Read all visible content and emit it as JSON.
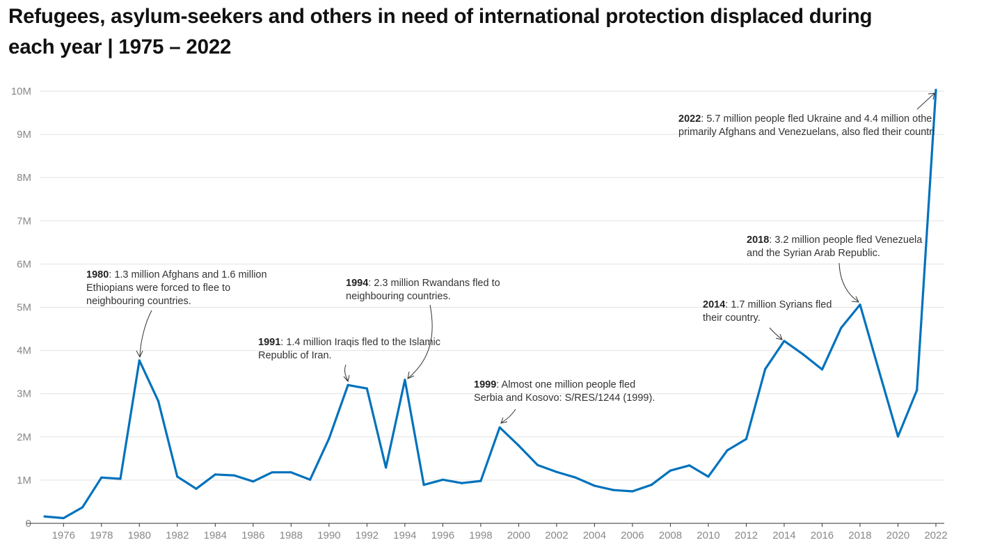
{
  "title": "Refugees, asylum-seekers and others in need of international protection displaced during each year | 1975 – 2022",
  "chart_data": {
    "type": "line",
    "title": "Refugees, asylum-seekers and others in need of international protection displaced during each year | 1975 – 2022",
    "xlabel": "",
    "ylabel": "",
    "color": "#0072bc",
    "grid": true,
    "ylim": [
      0,
      10000000
    ],
    "xlim": [
      1975,
      2022
    ],
    "y_ticks": [
      {
        "v": 0,
        "label": "0"
      },
      {
        "v": 1000000,
        "label": "1M"
      },
      {
        "v": 2000000,
        "label": "2M"
      },
      {
        "v": 3000000,
        "label": "3M"
      },
      {
        "v": 4000000,
        "label": "4M"
      },
      {
        "v": 5000000,
        "label": "5M"
      },
      {
        "v": 6000000,
        "label": "6M"
      },
      {
        "v": 7000000,
        "label": "7M"
      },
      {
        "v": 8000000,
        "label": "8M"
      },
      {
        "v": 9000000,
        "label": "9M"
      },
      {
        "v": 10000000,
        "label": "10M"
      }
    ],
    "x_ticks": [
      "1976",
      "1978",
      "1980",
      "1982",
      "1984",
      "1986",
      "1988",
      "1990",
      "1992",
      "1994",
      "1996",
      "1998",
      "2000",
      "2002",
      "2004",
      "2006",
      "2008",
      "2010",
      "2012",
      "2014",
      "2016",
      "2018",
      "2020",
      "2022"
    ],
    "x": [
      1975,
      1976,
      1977,
      1978,
      1979,
      1980,
      1981,
      1982,
      1983,
      1984,
      1985,
      1986,
      1987,
      1988,
      1989,
      1990,
      1991,
      1992,
      1993,
      1994,
      1995,
      1996,
      1997,
      1998,
      1999,
      2000,
      2001,
      2002,
      2003,
      2004,
      2005,
      2006,
      2007,
      2008,
      2009,
      2010,
      2011,
      2012,
      2013,
      2014,
      2015,
      2016,
      2017,
      2018,
      2019,
      2020,
      2021,
      2022
    ],
    "values": [
      160000,
      120000,
      370000,
      1060000,
      1030000,
      3770000,
      2830000,
      1080000,
      800000,
      1130000,
      1110000,
      970000,
      1180000,
      1180000,
      1010000,
      1960000,
      3200000,
      3120000,
      1290000,
      3320000,
      890000,
      1010000,
      930000,
      980000,
      2220000,
      1800000,
      1350000,
      1190000,
      1060000,
      870000,
      770000,
      740000,
      890000,
      1220000,
      1340000,
      1080000,
      1690000,
      1950000,
      3570000,
      4220000,
      3910000,
      3560000,
      4520000,
      5060000,
      3530000,
      2010000,
      3080000,
      10030000
    ]
  },
  "annotations": [
    {
      "id": "1980",
      "year": "1980",
      "text": ": 1.3 million Afghans and 1.6 million",
      "lines": [
        "Ethiopians were forced to flee to",
        "neighbouring countries."
      ]
    },
    {
      "id": "1991",
      "year": "1991",
      "text": ": 1.4 million Iraqis fled to the Islamic",
      "lines": [
        "Republic of Iran."
      ]
    },
    {
      "id": "1994",
      "year": "1994",
      "text": ": 2.3 million Rwandans fled to",
      "lines": [
        "neighbouring countries."
      ]
    },
    {
      "id": "1999",
      "year": "1999",
      "text": ": Almost one million people fled",
      "lines": [
        "Serbia and Kosovo: S/RES/1244 (1999)."
      ]
    },
    {
      "id": "2014",
      "year": "2014",
      "text": ": 1.7 million Syrians fled",
      "lines": [
        "their country."
      ]
    },
    {
      "id": "2018",
      "year": "2018",
      "text": ": 3.2 million people fled Venezuela",
      "lines": [
        "and the Syrian Arab Republic."
      ]
    },
    {
      "id": "2022",
      "year": "2022",
      "text": ": 5.7 million people fled Ukraine and 4.4 million othe",
      "lines": [
        "primarily Afghans and Venezuelans, also fled their countri"
      ]
    }
  ]
}
